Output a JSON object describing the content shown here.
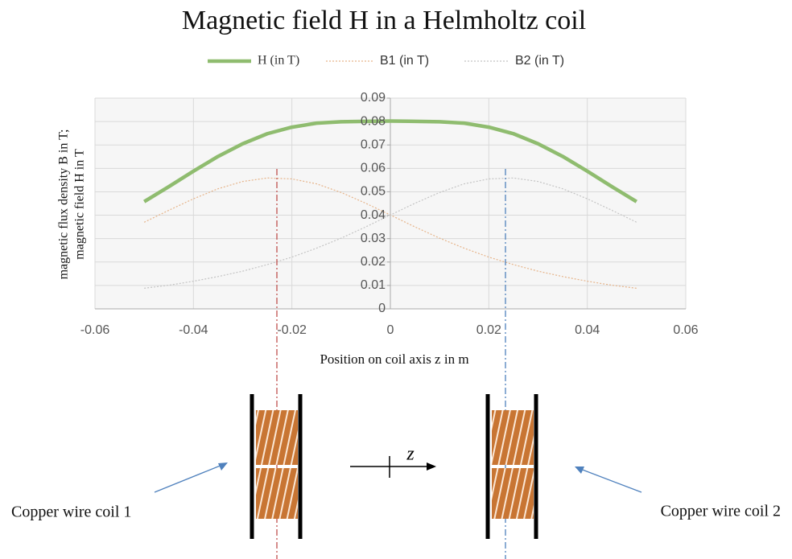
{
  "chart_data": {
    "type": "line",
    "title": "Magnetic field H in a Helmholtz coil",
    "xlabel": "Position on coil axis z in m",
    "ylabel": [
      "magnetic flux density B in T;",
      "magnetic field H in T"
    ],
    "x": [
      -0.05,
      -0.045,
      -0.04,
      -0.035,
      -0.03,
      -0.025,
      -0.02,
      -0.015,
      -0.01,
      -0.005,
      0,
      0.005,
      0.01,
      0.015,
      0.02,
      0.025,
      0.03,
      0.035,
      0.04,
      0.045,
      0.05
    ],
    "series": [
      {
        "name": "H (in T)",
        "color": "#8fbc6f",
        "values": [
          0.0458,
          0.0522,
          0.0588,
          0.0651,
          0.0705,
          0.0748,
          0.0776,
          0.0793,
          0.0799,
          0.0801,
          0.0802,
          0.0801,
          0.0799,
          0.0793,
          0.0776,
          0.0748,
          0.0705,
          0.0651,
          0.0588,
          0.0522,
          0.0458
        ]
      },
      {
        "name": "B1 (in T)",
        "color": "#e6b48a",
        "values": [
          0.037,
          0.0421,
          0.047,
          0.0513,
          0.0544,
          0.0559,
          0.0555,
          0.0534,
          0.0497,
          0.0451,
          0.0401,
          0.035,
          0.0302,
          0.0259,
          0.0221,
          0.0189,
          0.0161,
          0.0138,
          0.0118,
          0.0101,
          0.0088
        ]
      },
      {
        "name": "B2 (in T)",
        "color": "#c4c4c4",
        "values": [
          0.0088,
          0.0101,
          0.0118,
          0.0138,
          0.0161,
          0.0189,
          0.0221,
          0.0259,
          0.0302,
          0.035,
          0.0401,
          0.0451,
          0.0497,
          0.0534,
          0.0555,
          0.0559,
          0.0544,
          0.0513,
          0.047,
          0.0421,
          0.037
        ]
      }
    ],
    "xlim": [
      -0.06,
      0.06
    ],
    "xticks": [
      -0.06,
      -0.04,
      -0.02,
      0,
      0.02,
      0.04,
      0.06
    ],
    "ylim": [
      0,
      0.09
    ],
    "yticks": [
      0,
      0.01,
      0.02,
      0.03,
      0.04,
      0.05,
      0.06,
      0.07,
      0.08,
      0.09
    ],
    "grid": true,
    "annotations": [
      "z",
      "Copper wire coil 1",
      "Copper wire coil 2"
    ]
  }
}
